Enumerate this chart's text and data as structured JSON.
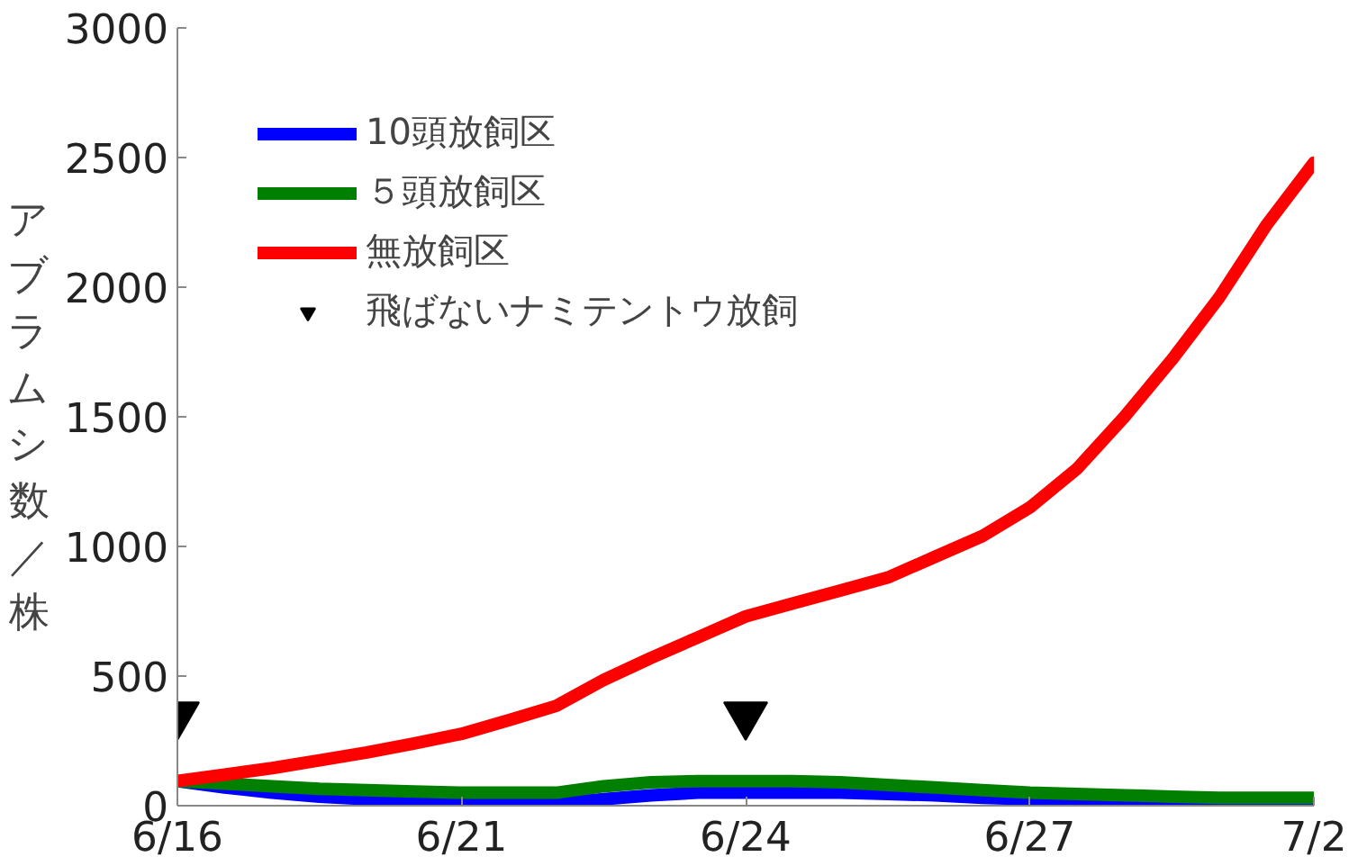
{
  "chart_data": {
    "type": "line",
    "ylabel": "アブラムシ数／株",
    "categories": [
      "6/16",
      null,
      null,
      null,
      null,
      null,
      "6/21",
      null,
      null,
      null,
      null,
      null,
      "6/24",
      null,
      null,
      null,
      null,
      null,
      "6/27",
      null,
      null,
      null,
      null,
      null,
      "7/2"
    ],
    "ylim": [
      0,
      3000
    ],
    "yticks": [
      0,
      500,
      1000,
      1500,
      2000,
      2500,
      3000
    ],
    "grid": false,
    "legend": "top left",
    "marker": "none",
    "line_style": "solid",
    "series": [
      {
        "name": "10頭放飼区",
        "color": "#0000ff",
        "values": [
          95,
          70,
          50,
          35,
          25,
          15,
          10,
          10,
          10,
          25,
          40,
          50,
          50,
          50,
          50,
          45,
          40,
          30,
          25,
          20,
          15,
          15,
          10,
          10,
          10
        ]
      },
      {
        "name": "５頭放飼区",
        "color": "#007f00",
        "values": [
          95,
          85,
          75,
          65,
          60,
          55,
          50,
          50,
          50,
          75,
          90,
          95,
          95,
          95,
          90,
          80,
          70,
          60,
          50,
          45,
          40,
          35,
          30,
          30,
          30
        ]
      },
      {
        "name": "無放飼区",
        "color": "#ff0000",
        "values": [
          95,
          120,
          145,
          175,
          205,
          240,
          277,
          330,
          385,
          485,
          570,
          650,
          730,
          780,
          830,
          880,
          960,
          1040,
          1150,
          1300,
          1500,
          1720,
          1960,
          2240,
          2480
        ]
      },
      {
        "name": "飛ばないナミテントウ放飼",
        "type": "scatter",
        "marker": "triangle",
        "color": "#000000",
        "values": [
          350,
          null,
          null,
          null,
          null,
          null,
          null,
          null,
          null,
          null,
          null,
          null,
          350,
          null,
          null,
          null,
          null,
          null,
          null,
          null,
          null,
          null,
          null,
          null,
          null
        ]
      }
    ]
  }
}
